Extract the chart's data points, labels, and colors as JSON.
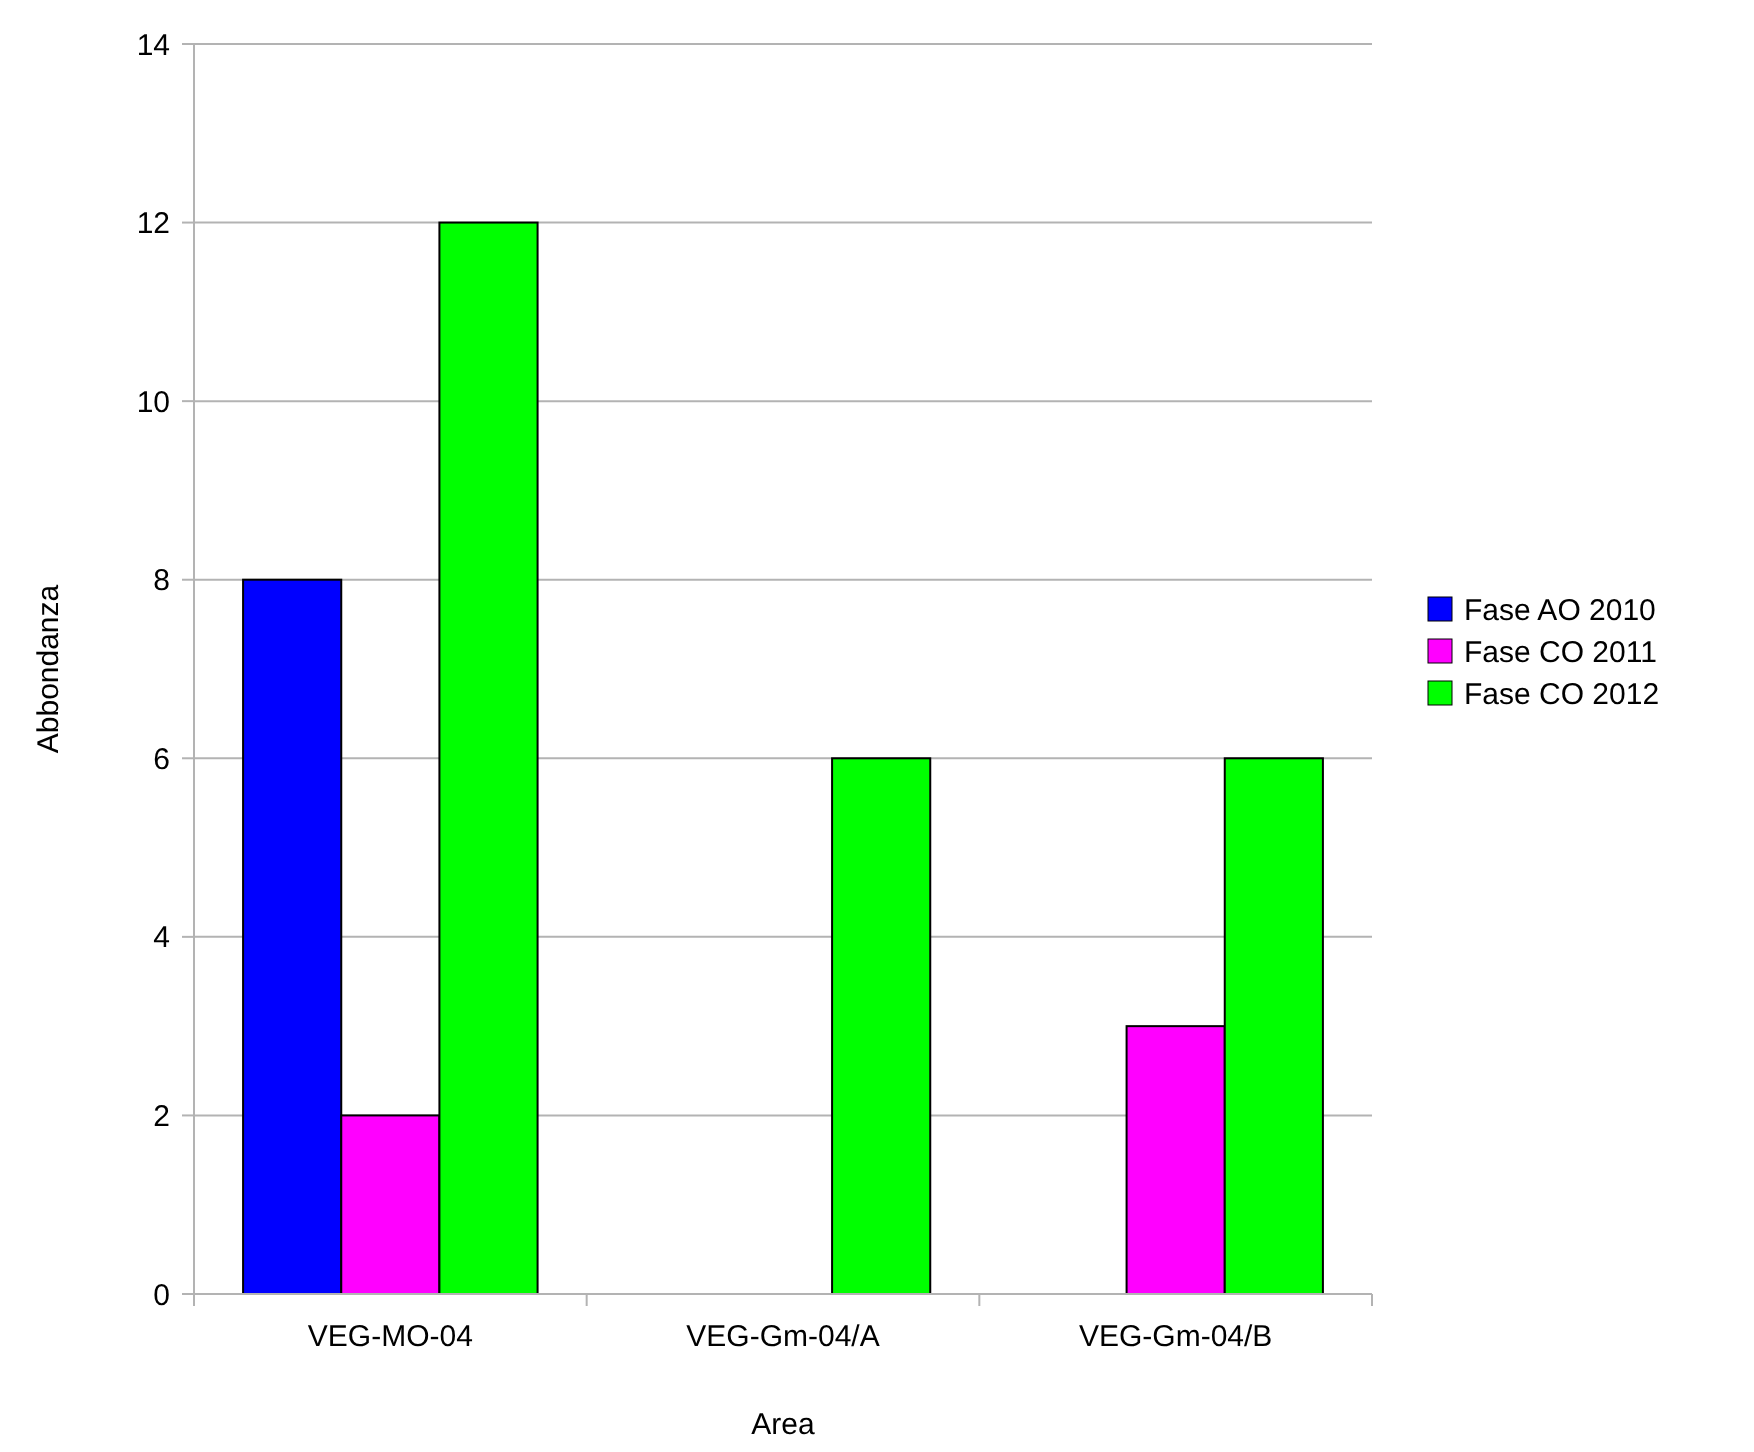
{
  "chart_data": {
    "type": "bar",
    "xlabel": "Area",
    "ylabel": "Abbondanza",
    "categories": [
      "VEG-MO-04",
      "VEG-Gm-04/A",
      "VEG-Gm-04/B"
    ],
    "series": [
      {
        "name": "Fase AO 2010",
        "color": "#0000ff",
        "values": [
          8,
          0,
          0
        ]
      },
      {
        "name": "Fase CO 2011",
        "color": "#ff00ff",
        "values": [
          2,
          0,
          3
        ]
      },
      {
        "name": "Fase CO 2012",
        "color": "#00ff00",
        "values": [
          12,
          6,
          6
        ]
      }
    ],
    "ylim": [
      0,
      14
    ],
    "yticks": [
      0,
      2,
      4,
      6,
      8,
      10,
      12,
      14
    ],
    "grid": "y",
    "legend": "right"
  }
}
